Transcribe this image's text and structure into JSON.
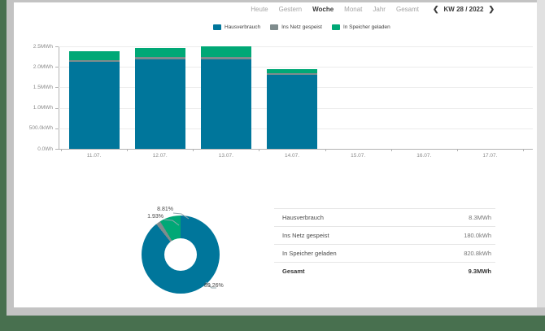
{
  "nav": {
    "items": [
      {
        "label": "Heute",
        "active": false
      },
      {
        "label": "Gestern",
        "active": false
      },
      {
        "label": "Woche",
        "active": true
      },
      {
        "label": "Monat",
        "active": false
      },
      {
        "label": "Jahr",
        "active": false
      },
      {
        "label": "Gesamt",
        "active": false
      }
    ],
    "week_selector": {
      "prev_icon": "❮",
      "label": "KW 28 / 2022",
      "next_icon": "❯"
    }
  },
  "legend": [
    {
      "label": "Hausverbrauch",
      "color": "#00769b"
    },
    {
      "label": "Ins Netz gespeist",
      "color": "#7f8c8d"
    },
    {
      "label": "In Speicher geladen",
      "color": "#00a876"
    }
  ],
  "chart_data": [
    {
      "type": "bar",
      "stacked": true,
      "categories": [
        "11.07.",
        "12.07.",
        "13.07.",
        "14.07.",
        "15.07.",
        "16.07.",
        "17.07."
      ],
      "series": [
        {
          "name": "Hausverbrauch",
          "color": "#00769b",
          "unit": "MWh",
          "values": [
            2.12,
            2.19,
            2.19,
            1.8,
            0,
            0,
            0
          ]
        },
        {
          "name": "Ins Netz gespeist",
          "color": "#7f8c8d",
          "unit": "MWh",
          "values": [
            0.045,
            0.045,
            0.045,
            0.045,
            0,
            0,
            0
          ]
        },
        {
          "name": "In Speicher geladen",
          "color": "#00a876",
          "unit": "MWh",
          "values": [
            0.215,
            0.225,
            0.265,
            0.105,
            0,
            0,
            0
          ]
        }
      ],
      "ylim": [
        0,
        2.5
      ],
      "yticks": [
        {
          "value": 2.5,
          "label": "2.5MWh"
        },
        {
          "value": 2.0,
          "label": "2.0MWh"
        },
        {
          "value": 1.5,
          "label": "1.5MWh"
        },
        {
          "value": 1.0,
          "label": "1.0MWh"
        },
        {
          "value": 0.5,
          "label": "500.0kWh"
        },
        {
          "value": 0.0,
          "label": "0.0Wh"
        }
      ],
      "grid": true,
      "legend_position": "top"
    },
    {
      "type": "pie",
      "donut": true,
      "slices": [
        {
          "label": "Hausverbrauch",
          "pct": 89.26,
          "pct_label": "89.26%",
          "color": "#00769b"
        },
        {
          "label": "Ins Netz gespeist",
          "pct": 1.93,
          "pct_label": "1.93%",
          "color": "#7f8c8d"
        },
        {
          "label": "In Speicher geladen",
          "pct": 8.81,
          "pct_label": "8.81%",
          "color": "#00a876"
        }
      ]
    }
  ],
  "summary_table": {
    "rows": [
      {
        "label": "Hausverbrauch",
        "value": "8.3MWh",
        "bold": false
      },
      {
        "label": "Ins Netz gespeist",
        "value": "180.0kWh",
        "bold": false
      },
      {
        "label": "In Speicher geladen",
        "value": "820.8kWh",
        "bold": false
      },
      {
        "label": "Gesamt",
        "value": "9.3MWh",
        "bold": true
      }
    ]
  }
}
